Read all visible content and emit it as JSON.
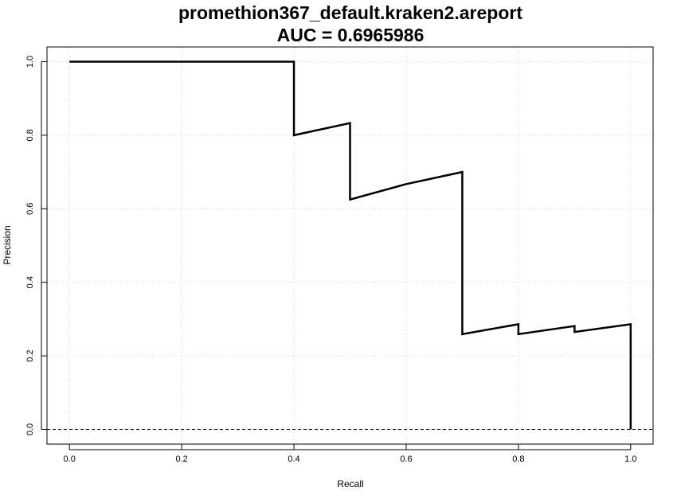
{
  "chart_data": {
    "type": "line",
    "title": "promethion367_default.kraken2.areport",
    "subtitle": "AUC = 0.6965986",
    "xlabel": "Recall",
    "ylabel": "Precision",
    "xlim": [
      -0.04,
      1.04
    ],
    "ylim": [
      -0.04,
      1.04
    ],
    "x_ticks": [
      "0.0",
      "0.2",
      "0.4",
      "0.6",
      "0.8",
      "1.0"
    ],
    "y_ticks": [
      "0.0",
      "0.2",
      "0.4",
      "0.6",
      "0.8",
      "1.0"
    ],
    "grid": true,
    "reference_line": {
      "y": 0.0,
      "style": "dashed"
    },
    "series": [
      {
        "color": "#000000",
        "points": [
          [
            0.0,
            1.0
          ],
          [
            0.4,
            1.0
          ],
          [
            0.4,
            0.8
          ],
          [
            0.5,
            0.833
          ],
          [
            0.5,
            0.625
          ],
          [
            0.6,
            0.667
          ],
          [
            0.7,
            0.7
          ],
          [
            0.7,
            0.259
          ],
          [
            0.8,
            0.286
          ],
          [
            0.8,
            0.259
          ],
          [
            0.9,
            0.281
          ],
          [
            0.9,
            0.265
          ],
          [
            1.0,
            0.286
          ],
          [
            1.0,
            0.0
          ]
        ]
      }
    ]
  }
}
